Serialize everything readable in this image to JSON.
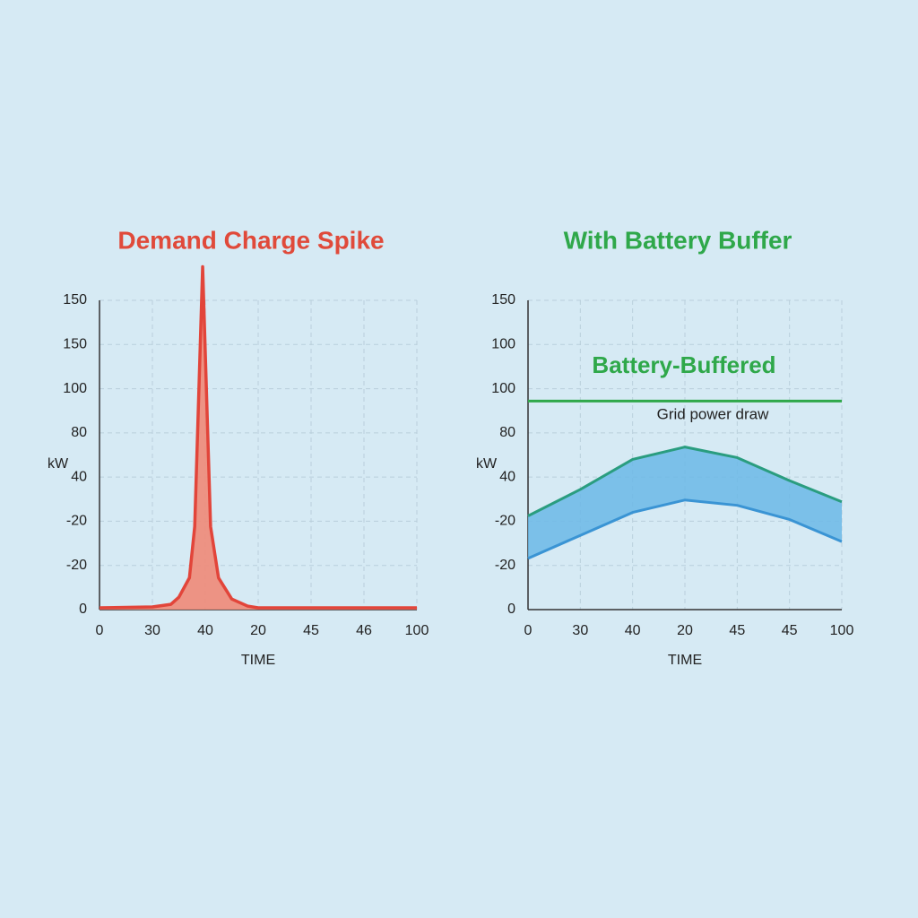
{
  "chart_data": [
    {
      "type": "area",
      "title": "Demand Charge Spike",
      "title_color": "#e04a3a",
      "ylabel": "kW",
      "xlabel": "TIME",
      "xlim": [
        0,
        120
      ],
      "ylim": [
        0,
        175
      ],
      "xticks": [
        0,
        {
          "value": 20,
          "label": "30"
        },
        40,
        {
          "value": 60,
          "label": "20"
        },
        {
          "value": 80,
          "label": "45"
        },
        {
          "value": 100,
          "label": "46"
        },
        {
          "value": 120,
          "label": "100"
        }
      ],
      "yticks": [
        0,
        {
          "value": 25,
          "label": "-20"
        },
        {
          "value": 50,
          "label": "-20"
        },
        {
          "value": 75,
          "label": "40"
        },
        {
          "value": 100,
          "label": "80"
        },
        {
          "value": 125,
          "label": "100"
        },
        {
          "value": 150,
          "label": "150"
        },
        {
          "value": 175,
          "label": "150"
        }
      ],
      "grid": true,
      "series": [
        {
          "color": "#e2453a",
          "fill": "#f08a78",
          "x": [
            0,
            20,
            27,
            30,
            34,
            36,
            39,
            42,
            45,
            50,
            56,
            60,
            80,
            100,
            120
          ],
          "values": [
            1,
            1.5,
            3,
            7,
            18,
            47,
            194,
            47,
            18,
            6,
            2,
            1,
            1,
            1,
            1
          ]
        }
      ]
    },
    {
      "type": "band",
      "title": "With Battery Buffer",
      "title_color": "#2fa84a",
      "ylabel": "kW",
      "xlabel": "TIME",
      "xlim": [
        0,
        120
      ],
      "ylim": [
        0,
        175
      ],
      "xticks": [
        0,
        {
          "value": 20,
          "label": "30"
        },
        40,
        {
          "value": 60,
          "label": "20"
        },
        {
          "value": 80,
          "label": "45"
        },
        {
          "value": 100,
          "label": "45"
        },
        {
          "value": 120,
          "label": "100"
        }
      ],
      "yticks": [
        0,
        {
          "value": 25,
          "label": "-20"
        },
        {
          "value": 50,
          "label": "-20"
        },
        {
          "value": 75,
          "label": "40"
        },
        {
          "value": 100,
          "label": "80"
        },
        {
          "value": 125,
          "label": "100"
        },
        {
          "value": 150,
          "label": "100"
        },
        {
          "value": 175,
          "label": "150"
        }
      ],
      "grid": true,
      "annotation": "Battery-Buffered",
      "series": [
        {
          "name": "Grid power draw",
          "color": "#2fa84a",
          "x": [
            0,
            120
          ],
          "values": [
            118,
            118
          ]
        },
        {
          "color": "#2a9d7f",
          "x": [
            0,
            20,
            40,
            60,
            80,
            100,
            120
          ],
          "values": [
            53,
            68,
            85,
            92,
            86,
            73,
            61
          ]
        },
        {
          "color": "#3a94d4",
          "x": [
            0,
            20,
            40,
            60,
            80,
            100,
            120
          ],
          "values": [
            29,
            42,
            55,
            62,
            59,
            51,
            38.5
          ]
        }
      ],
      "band_fill": "#6bb8e6"
    }
  ]
}
